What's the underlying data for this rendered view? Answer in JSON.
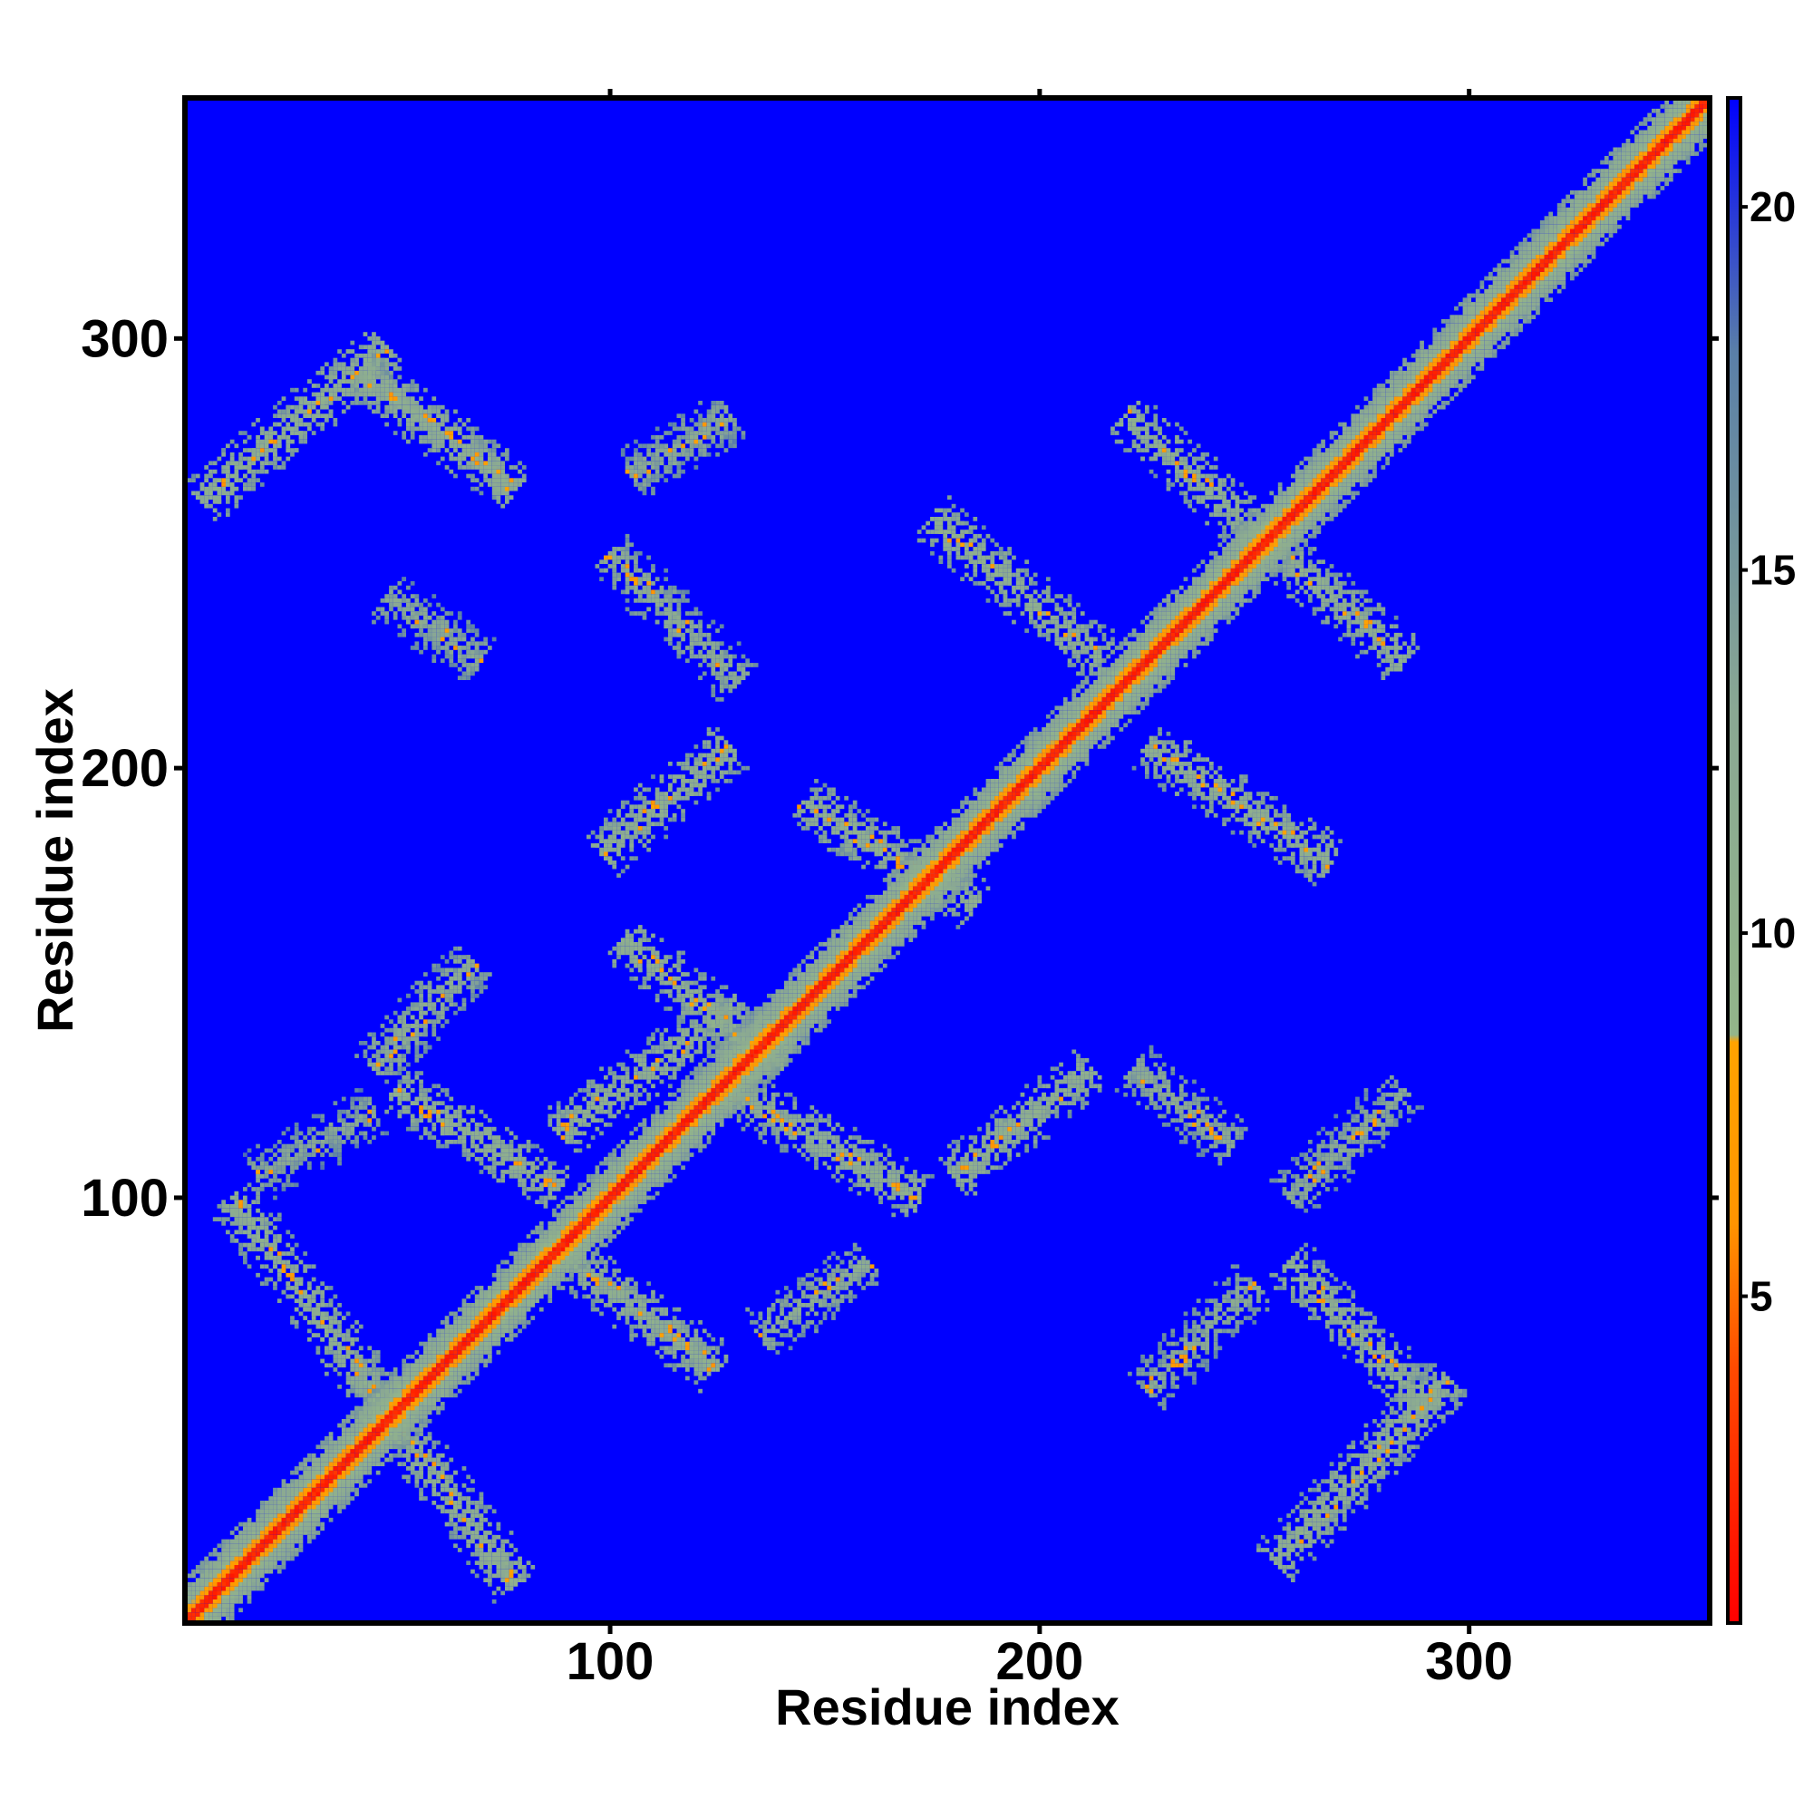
{
  "chart_data": {
    "type": "heatmap",
    "title": "",
    "xlabel": "Residue index",
    "ylabel": "Residue index",
    "xlim": [
      1,
      356
    ],
    "ylim": [
      1,
      356
    ],
    "x_ticks": [
      {
        "value": 100,
        "label": "100"
      },
      {
        "value": 200,
        "label": "200"
      },
      {
        "value": 300,
        "label": "300"
      }
    ],
    "y_ticks": [
      {
        "value": 100,
        "label": "100"
      },
      {
        "value": 200,
        "label": "200"
      },
      {
        "value": 300,
        "label": "300"
      }
    ],
    "colorbar": {
      "range": [
        0.5,
        21.5
      ],
      "ticks": [
        {
          "value": 5,
          "label": "5"
        },
        {
          "value": 10,
          "label": "10"
        },
        {
          "value": 15,
          "label": "15"
        },
        {
          "value": 20,
          "label": "20"
        }
      ],
      "stops": [
        {
          "value": 0.5,
          "color": "#ff0000"
        },
        {
          "value": 4,
          "color": "#ff4a00"
        },
        {
          "value": 6,
          "color": "#ff9400"
        },
        {
          "value": 8.5,
          "color": "#ffa300"
        },
        {
          "value": 8.6,
          "color": "#93b58a"
        },
        {
          "value": 13,
          "color": "#8aa893"
        },
        {
          "value": 18,
          "color": "#5a7fa8"
        },
        {
          "value": 21.5,
          "color": "#0000ff"
        }
      ]
    },
    "background_value": 21,
    "diagonal": {
      "core_value": 1.5,
      "band_halfwidth": 10
    },
    "contact_bands": [
      {
        "from": [
          12,
          100
        ],
        "to": [
          78,
          10
        ],
        "value": 11
      },
      {
        "from": [
          5,
          262
        ],
        "to": [
          48,
          298
        ],
        "value": 11
      },
      {
        "from": [
          42,
          292
        ],
        "to": [
          78,
          265
        ],
        "value": 11
      },
      {
        "from": [
          48,
          240
        ],
        "to": [
          70,
          225
        ],
        "value": 12.5
      },
      {
        "from": [
          45,
          130
        ],
        "to": [
          68,
          155
        ],
        "value": 12
      },
      {
        "from": [
          50,
          125
        ],
        "to": [
          88,
          102
        ],
        "value": 11
      },
      {
        "from": [
          18,
          105
        ],
        "to": [
          45,
          120
        ],
        "value": 13
      },
      {
        "from": [
          88,
          115
        ],
        "to": [
          130,
          145
        ],
        "value": 11
      },
      {
        "from": [
          85,
          90
        ],
        "to": [
          125,
          60
        ],
        "value": 11
      },
      {
        "from": [
          98,
          180
        ],
        "to": [
          128,
          205
        ],
        "value": 11
      },
      {
        "from": [
          103,
          160
        ],
        "to": [
          140,
          130
        ],
        "value": 11
      },
      {
        "from": [
          128,
          125
        ],
        "to": [
          172,
          100
        ],
        "value": 11
      },
      {
        "from": [
          135,
          68
        ],
        "to": [
          160,
          85
        ],
        "value": 12
      },
      {
        "from": [
          100,
          250
        ],
        "to": [
          130,
          220
        ],
        "value": 12
      },
      {
        "from": [
          105,
          268
        ],
        "to": [
          128,
          282
        ],
        "value": 12.5
      },
      {
        "from": [
          145,
          192
        ],
        "to": [
          185,
          168
        ],
        "value": 11
      },
      {
        "from": [
          180,
          105
        ],
        "to": [
          212,
          130
        ],
        "value": 11
      },
      {
        "from": [
          175,
          258
        ],
        "to": [
          215,
          225
        ],
        "value": 11
      },
      {
        "from": [
          220,
          282
        ],
        "to": [
          285,
          225
        ],
        "value": 11
      },
      {
        "from": [
          225,
          205
        ],
        "to": [
          268,
          178
        ],
        "value": 11
      },
      {
        "from": [
          222,
          130
        ],
        "to": [
          245,
          112
        ],
        "value": 12
      },
      {
        "from": [
          258,
          100
        ],
        "to": [
          285,
          125
        ],
        "value": 12.5
      },
      {
        "from": [
          258,
          85
        ],
        "to": [
          292,
          50
        ],
        "value": 11
      },
      {
        "from": [
          255,
          15
        ],
        "to": [
          295,
          58
        ],
        "value": 11
      },
      {
        "from": [
          225,
          55
        ],
        "to": [
          250,
          80
        ],
        "value": 12.5
      }
    ]
  }
}
